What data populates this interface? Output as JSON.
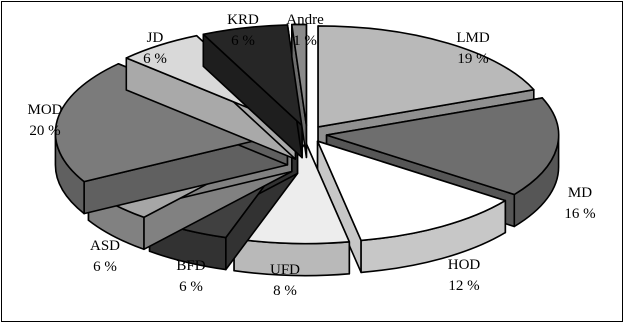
{
  "chart_data": {
    "type": "pie",
    "title": "",
    "categories": [
      "LMD",
      "MD",
      "HOD",
      "UFD",
      "BFD",
      "ASD",
      "MOD",
      "JD",
      "KRD",
      "Andre"
    ],
    "values": [
      19,
      16,
      12,
      8,
      6,
      6,
      20,
      6,
      6,
      1
    ],
    "value_labels": [
      "19 %",
      "16 %",
      "12 %",
      "8 %",
      "6 %",
      "6 %",
      "20 %",
      "6 %",
      "6 %",
      "1 %"
    ],
    "colors": [
      "#b9b9b9",
      "#6e6e6e",
      "#ffffff",
      "#ededed",
      "#404040",
      "#a6a6a6",
      "#7b7b7b",
      "#d9d9d9",
      "#262626",
      "#8a8a8a"
    ],
    "exploded": true,
    "three_d": true,
    "legend": "none"
  }
}
